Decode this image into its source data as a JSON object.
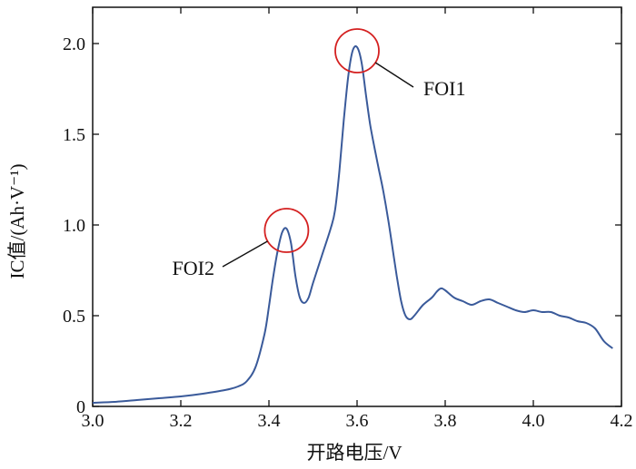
{
  "chart_data": {
    "type": "line",
    "xlabel": "开路电压/V",
    "ylabel": "IC值/(Ah·V⁻¹)",
    "xlim": [
      3.0,
      4.2
    ],
    "ylim": [
      0,
      2.2
    ],
    "x_ticks": [
      "3.0",
      "3.2",
      "3.4",
      "3.6",
      "3.8",
      "4.0",
      "4.2"
    ],
    "y_ticks": [
      "0",
      "0.5",
      "1.0",
      "1.5",
      "2.0"
    ],
    "grid": false,
    "line_color": "#3a5a9a",
    "highlight_color": "#d42020",
    "series": [
      {
        "x": [
          3.0,
          3.05,
          3.1,
          3.15,
          3.2,
          3.25,
          3.3,
          3.33,
          3.35,
          3.37,
          3.39,
          3.4,
          3.41,
          3.42,
          3.43,
          3.44,
          3.45,
          3.46,
          3.47,
          3.48,
          3.49,
          3.5,
          3.52,
          3.54,
          3.55,
          3.56,
          3.57,
          3.58,
          3.59,
          3.6,
          3.61,
          3.62,
          3.63,
          3.64,
          3.65,
          3.66,
          3.67,
          3.68,
          3.69,
          3.7,
          3.71,
          3.72,
          3.73,
          3.75,
          3.77,
          3.78,
          3.79,
          3.8,
          3.82,
          3.84,
          3.86,
          3.88,
          3.9,
          3.92,
          3.94,
          3.96,
          3.98,
          4.0,
          4.02,
          4.04,
          4.06,
          4.08,
          4.1,
          4.12,
          4.14,
          4.16,
          4.18
        ],
        "y": [
          0.02,
          0.025,
          0.035,
          0.045,
          0.055,
          0.07,
          0.09,
          0.11,
          0.14,
          0.22,
          0.4,
          0.55,
          0.72,
          0.86,
          0.96,
          0.98,
          0.9,
          0.72,
          0.6,
          0.57,
          0.6,
          0.68,
          0.83,
          0.98,
          1.08,
          1.3,
          1.58,
          1.82,
          1.96,
          1.98,
          1.9,
          1.72,
          1.55,
          1.42,
          1.3,
          1.18,
          1.04,
          0.88,
          0.72,
          0.58,
          0.5,
          0.48,
          0.5,
          0.56,
          0.6,
          0.63,
          0.65,
          0.64,
          0.6,
          0.58,
          0.56,
          0.58,
          0.59,
          0.57,
          0.55,
          0.53,
          0.52,
          0.53,
          0.52,
          0.52,
          0.5,
          0.49,
          0.47,
          0.46,
          0.43,
          0.36,
          0.32
        ]
      }
    ],
    "annotations": [
      {
        "label": "FOI1",
        "x": 3.6,
        "y": 1.96
      },
      {
        "label": "FOI2",
        "x": 3.44,
        "y": 0.97
      }
    ]
  }
}
